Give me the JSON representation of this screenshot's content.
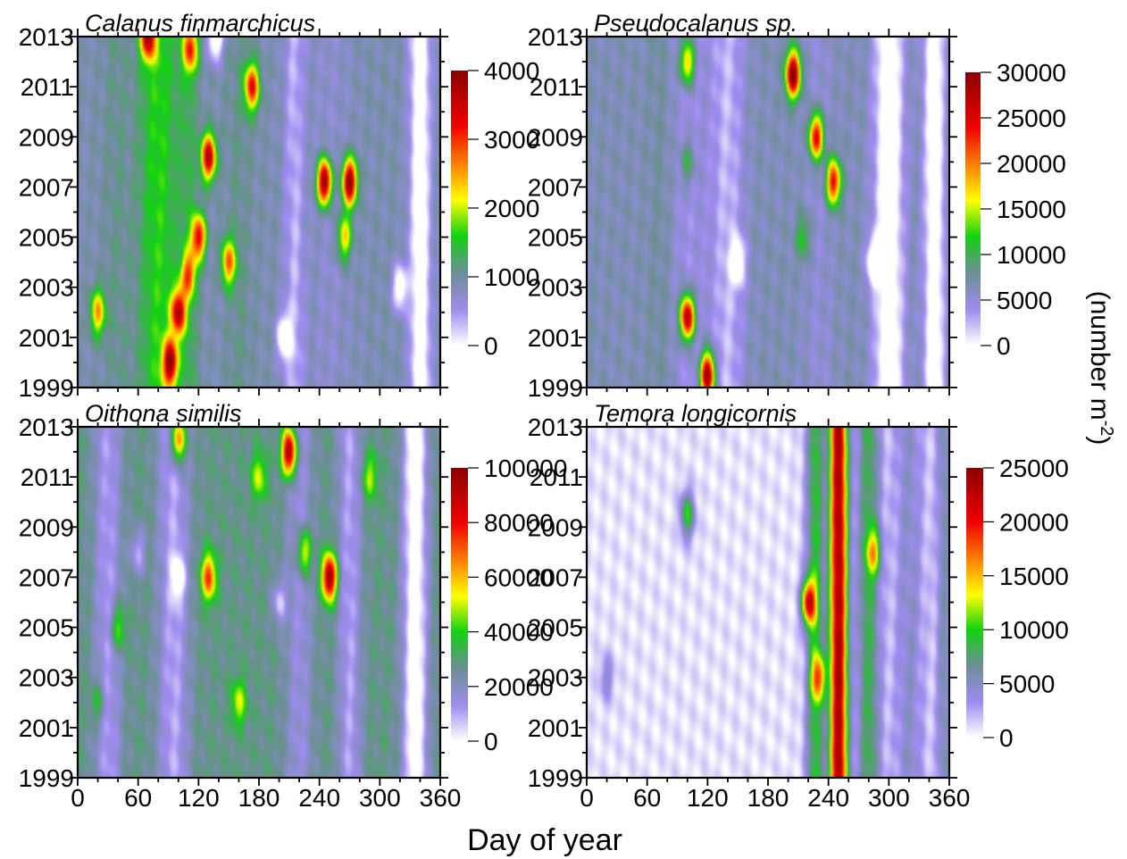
{
  "figure": {
    "xlabel": "Day of year",
    "unit_label": {
      "base": "(number m",
      "sup": "-2",
      "close": ")"
    }
  },
  "colors": {
    "scale": [
      "#ffffff",
      "#9f8cf0",
      "#6a8f92",
      "#12d212",
      "#ffff00",
      "#ff9d00",
      "#f00000",
      "#8b0000"
    ]
  },
  "chart_data": [
    {
      "type": "heatmap",
      "title": "Calanus finmarchicus",
      "xlabel": "Day of year",
      "ylabel": "",
      "xlim": [
        0,
        360
      ],
      "ylim": [
        1999,
        2013
      ],
      "x_ticks": [
        0,
        60,
        120,
        180,
        240,
        300,
        360
      ],
      "y_ticks": [
        1999,
        2001,
        2003,
        2005,
        2007,
        2009,
        2011,
        2013
      ],
      "colorbar": {
        "min": 0,
        "max": 4000,
        "ticks": [
          0,
          1000,
          2000,
          3000,
          4000
        ]
      },
      "background": 900,
      "bands": [
        {
          "x": 38,
          "sx": 14,
          "value": 1100
        },
        {
          "x": 80,
          "sx": 20,
          "value": 1700
        },
        {
          "x": 110,
          "sx": 10,
          "value": 1300
        },
        {
          "x": 160,
          "sx": 14,
          "value": 1100
        },
        {
          "x": 215,
          "sx": 10,
          "value": 300
        },
        {
          "x": 250,
          "sx": 22,
          "value": 700
        },
        {
          "x": 340,
          "sx": 10,
          "value": -400
        }
      ],
      "hotspots": [
        {
          "x": 20,
          "y": 2002,
          "value": 2500
        },
        {
          "x": 70,
          "y": 2013,
          "value": 3400
        },
        {
          "x": 92,
          "y": 2000,
          "value": 3600
        },
        {
          "x": 100,
          "y": 2002,
          "value": 3400
        },
        {
          "x": 110,
          "y": 2003.5,
          "value": 2600
        },
        {
          "x": 120,
          "y": 2005,
          "value": 3200
        },
        {
          "x": 130,
          "y": 2008.2,
          "value": 3700
        },
        {
          "x": 112,
          "y": 2012.5,
          "value": 2800
        },
        {
          "x": 137,
          "y": 2013,
          "value": -600
        },
        {
          "x": 150,
          "y": 2004,
          "value": 2700
        },
        {
          "x": 173,
          "y": 2011,
          "value": 3200
        },
        {
          "x": 245,
          "y": 2007.2,
          "value": 4100
        },
        {
          "x": 270,
          "y": 2007.2,
          "value": 4100
        },
        {
          "x": 265,
          "y": 2005,
          "value": 2400
        },
        {
          "x": 320,
          "y": 2003,
          "value": -300
        },
        {
          "x": 205,
          "y": 2001,
          "value": -400
        }
      ]
    },
    {
      "type": "heatmap",
      "title": "Pseudocalanus sp.",
      "xlabel": "Day of year",
      "ylabel": "",
      "xlim": [
        0,
        360
      ],
      "ylim": [
        1999,
        2013
      ],
      "x_ticks": [
        0,
        60,
        120,
        180,
        240,
        300,
        360
      ],
      "y_ticks": [
        1999,
        2001,
        2003,
        2005,
        2007,
        2009,
        2011,
        2013
      ],
      "colorbar": {
        "min": 0,
        "max": 30000,
        "ticks": [
          0,
          5000,
          10000,
          15000,
          20000,
          25000,
          30000
        ]
      },
      "background": 6500,
      "bands": [
        {
          "x": 75,
          "sx": 14,
          "value": 8000
        },
        {
          "x": 100,
          "sx": 22,
          "value": 4000
        },
        {
          "x": 140,
          "sx": 16,
          "value": 2000
        },
        {
          "x": 230,
          "sx": 16,
          "value": 5000
        },
        {
          "x": 300,
          "sx": 14,
          "value": -3500
        },
        {
          "x": 345,
          "sx": 10,
          "value": -3000
        }
      ],
      "hotspots": [
        {
          "x": 100,
          "y": 2012,
          "value": 20000
        },
        {
          "x": 100,
          "y": 2008,
          "value": 12000
        },
        {
          "x": 100,
          "y": 2001.8,
          "value": 30000
        },
        {
          "x": 120,
          "y": 1999.5,
          "value": 31000
        },
        {
          "x": 205,
          "y": 2011.5,
          "value": 31000
        },
        {
          "x": 228,
          "y": 2009,
          "value": 26000
        },
        {
          "x": 245,
          "y": 2007.2,
          "value": 25000
        },
        {
          "x": 215,
          "y": 2005,
          "value": 12000
        },
        {
          "x": 150,
          "y": 2004,
          "value": -2000
        },
        {
          "x": 285,
          "y": 2004,
          "value": -3000
        }
      ]
    },
    {
      "type": "heatmap",
      "title": "Oithona similis",
      "xlabel": "Day of year",
      "ylabel": "",
      "xlim": [
        0,
        360
      ],
      "ylim": [
        1999,
        2013
      ],
      "x_ticks": [
        0,
        60,
        120,
        180,
        240,
        300,
        360
      ],
      "y_ticks": [
        1999,
        2001,
        2003,
        2005,
        2007,
        2009,
        2011,
        2013
      ],
      "colorbar": {
        "min": 0,
        "max": 100000,
        "ticks": [
          0,
          20000,
          40000,
          60000,
          80000,
          100000
        ]
      },
      "background": 28000,
      "bands": [
        {
          "x": 30,
          "sx": 14,
          "value": 10000
        },
        {
          "x": 95,
          "sx": 16,
          "value": 8000
        },
        {
          "x": 220,
          "sx": 14,
          "value": 14000
        },
        {
          "x": 270,
          "sx": 12,
          "value": 9000
        },
        {
          "x": 335,
          "sx": 12,
          "value": -9000
        }
      ],
      "hotspots": [
        {
          "x": 100,
          "y": 2012.5,
          "value": 80000
        },
        {
          "x": 130,
          "y": 2007,
          "value": 75000
        },
        {
          "x": 210,
          "y": 2012,
          "value": 102000
        },
        {
          "x": 225,
          "y": 2008,
          "value": 62000
        },
        {
          "x": 250,
          "y": 2007,
          "value": 100000
        },
        {
          "x": 160,
          "y": 2002,
          "value": 52000
        },
        {
          "x": 40,
          "y": 2005,
          "value": 52000
        },
        {
          "x": 20,
          "y": 2002,
          "value": 44000
        },
        {
          "x": 180,
          "y": 2011,
          "value": 52000
        },
        {
          "x": 290,
          "y": 2011,
          "value": 50000
        },
        {
          "x": 100,
          "y": 2007,
          "value": 5000
        },
        {
          "x": 200,
          "y": 2006,
          "value": 8000
        },
        {
          "x": 60,
          "y": 2008,
          "value": 9000
        }
      ]
    },
    {
      "type": "heatmap",
      "title": "Temora longicornis",
      "xlabel": "Day of year",
      "ylabel": "",
      "xlim": [
        0,
        360
      ],
      "ylim": [
        1999,
        2013
      ],
      "x_ticks": [
        0,
        60,
        120,
        180,
        240,
        300,
        360
      ],
      "y_ticks": [
        1999,
        2001,
        2003,
        2005,
        2007,
        2009,
        2011,
        2013
      ],
      "colorbar": {
        "min": 0,
        "max": 25000,
        "ticks": [
          0,
          5000,
          10000,
          15000,
          20000,
          25000
        ]
      },
      "background": 800,
      "bands": [
        {
          "x": 250,
          "sx": 9,
          "value": 26000
        },
        {
          "x": 227,
          "sx": 9,
          "value": 10000
        },
        {
          "x": 280,
          "sx": 12,
          "value": 9000
        },
        {
          "x": 320,
          "sx": 16,
          "value": 5000
        },
        {
          "x": 355,
          "sx": 8,
          "value": 6000
        }
      ],
      "hotspots": [
        {
          "x": 220,
          "y": 2006,
          "value": 18000
        },
        {
          "x": 230,
          "y": 2003,
          "value": 12000
        },
        {
          "x": 100,
          "y": 2009.5,
          "value": 10000
        },
        {
          "x": 20,
          "y": 2003,
          "value": 4500
        },
        {
          "x": 285,
          "y": 2008,
          "value": 10000
        }
      ]
    }
  ]
}
